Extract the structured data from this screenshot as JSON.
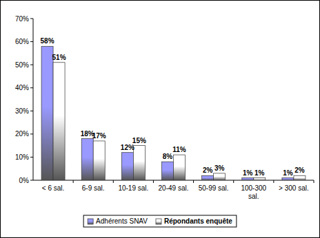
{
  "chart_data": {
    "type": "bar",
    "categories": [
      "< 6 sal.",
      "6-9 sal.",
      "10-19 sal.",
      "20-49 sal.",
      "50-99 sal.",
      "100-300 sal.",
      "> 300 sal."
    ],
    "series": [
      {
        "name": "Adhérents SNAV",
        "color": "#9999ff",
        "values": [
          58,
          18,
          12,
          8,
          2,
          1,
          1
        ],
        "value_labels": [
          "58%",
          "18%",
          "12%",
          "8%",
          "2%",
          "1%",
          "1%"
        ]
      },
      {
        "name": "Répondants enquête",
        "color": "#ffffff",
        "values": [
          51,
          17,
          15,
          11,
          3,
          1,
          2
        ],
        "value_labels": [
          "51%",
          "17%",
          "15%",
          "11%",
          "3%",
          "1%",
          "2%"
        ]
      }
    ],
    "ylim": [
      0,
      70
    ],
    "yticks": [
      {
        "value": 0,
        "label": "0%"
      },
      {
        "value": 10,
        "label": "10%"
      },
      {
        "value": 20,
        "label": "20%"
      },
      {
        "value": 30,
        "label": "30%"
      },
      {
        "value": 40,
        "label": "40%"
      },
      {
        "value": 50,
        "label": "50%"
      },
      {
        "value": 60,
        "label": "60%"
      },
      {
        "value": 70,
        "label": "70%"
      }
    ],
    "grid": false,
    "legend": "bottom",
    "data_labels": true
  }
}
